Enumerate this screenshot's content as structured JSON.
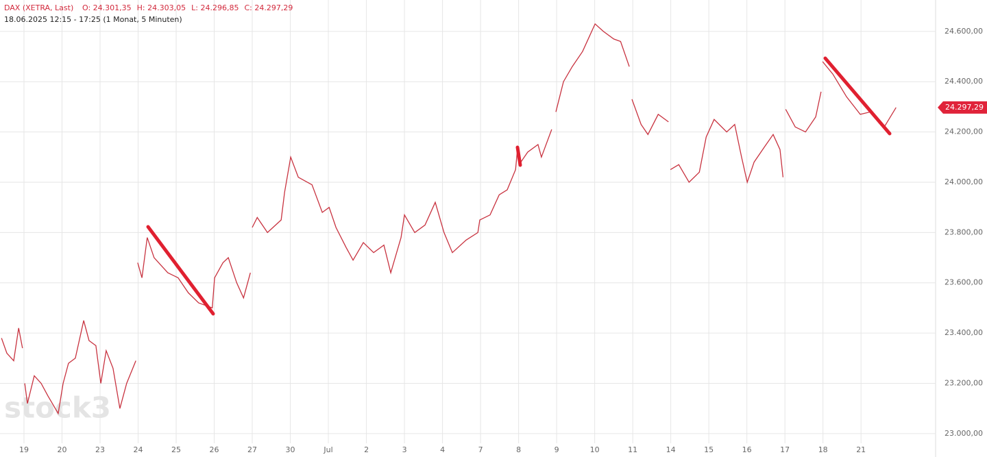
{
  "chart_data": {
    "type": "line",
    "title": "DAX (XETRA, Last)",
    "ohlc": [
      "O: 24.301,35",
      "H: 24.303,05",
      "L: 24.296,85",
      "C: 24.297,29"
    ],
    "subtitle": "18.06.2025 12:15 - 17:25  (1 Monat, 5 Minuten)",
    "watermark": "stock3",
    "last_price": 24297.29,
    "last_price_label": "24.297,29",
    "series": [
      {
        "name": "DAX",
        "color": "#c8323f",
        "x": [
          -0.59,
          -0.45,
          -0.27,
          -0.14,
          -0.04,
          -0.02,
          0.02,
          0.09,
          0.27,
          0.45,
          0.63,
          0.9,
          1.03,
          1.17,
          1.35,
          1.57,
          1.71,
          1.89,
          2.02,
          2.16,
          2.34,
          2.52,
          2.7,
          2.94,
          2.97,
          2.99,
          3.1,
          3.24,
          3.42,
          3.78,
          4.05,
          4.32,
          4.59,
          4.95,
          5.01,
          5.23,
          5.37,
          5.59,
          5.77,
          5.95,
          5.98,
          6.0,
          6.13,
          6.4,
          6.76,
          6.85,
          7.01,
          7.21,
          7.57,
          7.84,
          8.02,
          8.2,
          8.47,
          8.65,
          8.92,
          9.19,
          9.46,
          9.64,
          9.91,
          10.0,
          10.27,
          10.54,
          10.81,
          11.04,
          11.26,
          11.62,
          11.93,
          11.98,
          12.25,
          12.49,
          12.7,
          12.92,
          12.97,
          13.06,
          13.24,
          13.51,
          13.6,
          13.87,
          13.93,
          13.98,
          14.18,
          14.41,
          14.68,
          14.86,
          15.01,
          15.23,
          15.5,
          15.68,
          15.91,
          15.95,
          15.98,
          16.22,
          16.4,
          16.67,
          16.94,
          16.97,
          16.99,
          17.21,
          17.48,
          17.75,
          17.93,
          18.14,
          18.47,
          18.68,
          18.86,
          19.01,
          19.19,
          19.46,
          19.69,
          19.87,
          19.95,
          19.98,
          20.02,
          20.27,
          20.54,
          20.81,
          20.95,
          20.97,
          20.99,
          21.26,
          21.62,
          21.98,
          22.25,
          22.61,
          22.92
        ],
        "values": [
          23380,
          23320,
          23290,
          23420,
          23340,
          null,
          23200,
          23120,
          23230,
          23200,
          23150,
          23080,
          23200,
          23280,
          23300,
          23450,
          23370,
          23350,
          23200,
          23330,
          23260,
          23100,
          23200,
          23290,
          null,
          23680,
          23620,
          23780,
          23700,
          23640,
          23620,
          23560,
          23520,
          23500,
          23620,
          23680,
          23700,
          23600,
          23540,
          23640,
          null,
          23820,
          23860,
          23800,
          23850,
          23960,
          24100,
          24020,
          23990,
          23880,
          23900,
          23820,
          23740,
          23690,
          23760,
          23720,
          23750,
          23640,
          23780,
          23870,
          23800,
          23830,
          23920,
          23800,
          23720,
          23770,
          23800,
          23850,
          23870,
          23950,
          23970,
          24050,
          24130,
          24080,
          24120,
          24150,
          24100,
          24210,
          null,
          24280,
          24400,
          24460,
          24520,
          24580,
          24630,
          24600,
          24570,
          24560,
          24460,
          null,
          24330,
          24230,
          24190,
          24270,
          24240,
          null,
          24050,
          24070,
          24000,
          24040,
          24180,
          24250,
          24200,
          24230,
          24100,
          24000,
          24080,
          24140,
          24190,
          24130,
          24020,
          null,
          24290,
          24220,
          24200,
          24260,
          24360,
          null,
          24480,
          24430,
          24340,
          24270,
          24280,
          24220,
          24297.29
        ]
      }
    ],
    "xlim": [
      -0.63,
      23.96
    ],
    "xticks": [
      {
        "value": 0,
        "label": "19"
      },
      {
        "value": 1,
        "label": "20"
      },
      {
        "value": 2,
        "label": "23"
      },
      {
        "value": 3,
        "label": "24"
      },
      {
        "value": 4,
        "label": "25"
      },
      {
        "value": 5,
        "label": "26"
      },
      {
        "value": 6,
        "label": "27"
      },
      {
        "value": 7,
        "label": "30"
      },
      {
        "value": 8,
        "label": "Jul"
      },
      {
        "value": 9,
        "label": "2"
      },
      {
        "value": 10,
        "label": "3"
      },
      {
        "value": 11,
        "label": "4"
      },
      {
        "value": 12,
        "label": "7"
      },
      {
        "value": 13,
        "label": "8"
      },
      {
        "value": 14,
        "label": "9"
      },
      {
        "value": 15,
        "label": "10"
      },
      {
        "value": 16,
        "label": "11"
      },
      {
        "value": 17,
        "label": "14"
      },
      {
        "value": 18,
        "label": "15"
      },
      {
        "value": 19,
        "label": "16"
      },
      {
        "value": 20,
        "label": "17"
      },
      {
        "value": 21,
        "label": "18"
      },
      {
        "value": 22,
        "label": "21"
      }
    ],
    "ylim": [
      22907,
      24725
    ],
    "yticks": [
      {
        "value": 23000,
        "label": "23.000,00"
      },
      {
        "value": 23200,
        "label": "23.200,00"
      },
      {
        "value": 23400,
        "label": "23.400,00"
      },
      {
        "value": 23600,
        "label": "23.600,00"
      },
      {
        "value": 23800,
        "label": "23.800,00"
      },
      {
        "value": 24000,
        "label": "24.000,00"
      },
      {
        "value": 24200,
        "label": "24.200,00"
      },
      {
        "value": 24400,
        "label": "24.400,00"
      },
      {
        "value": 24600,
        "label": "24.600,00"
      }
    ],
    "grid": true
  }
}
